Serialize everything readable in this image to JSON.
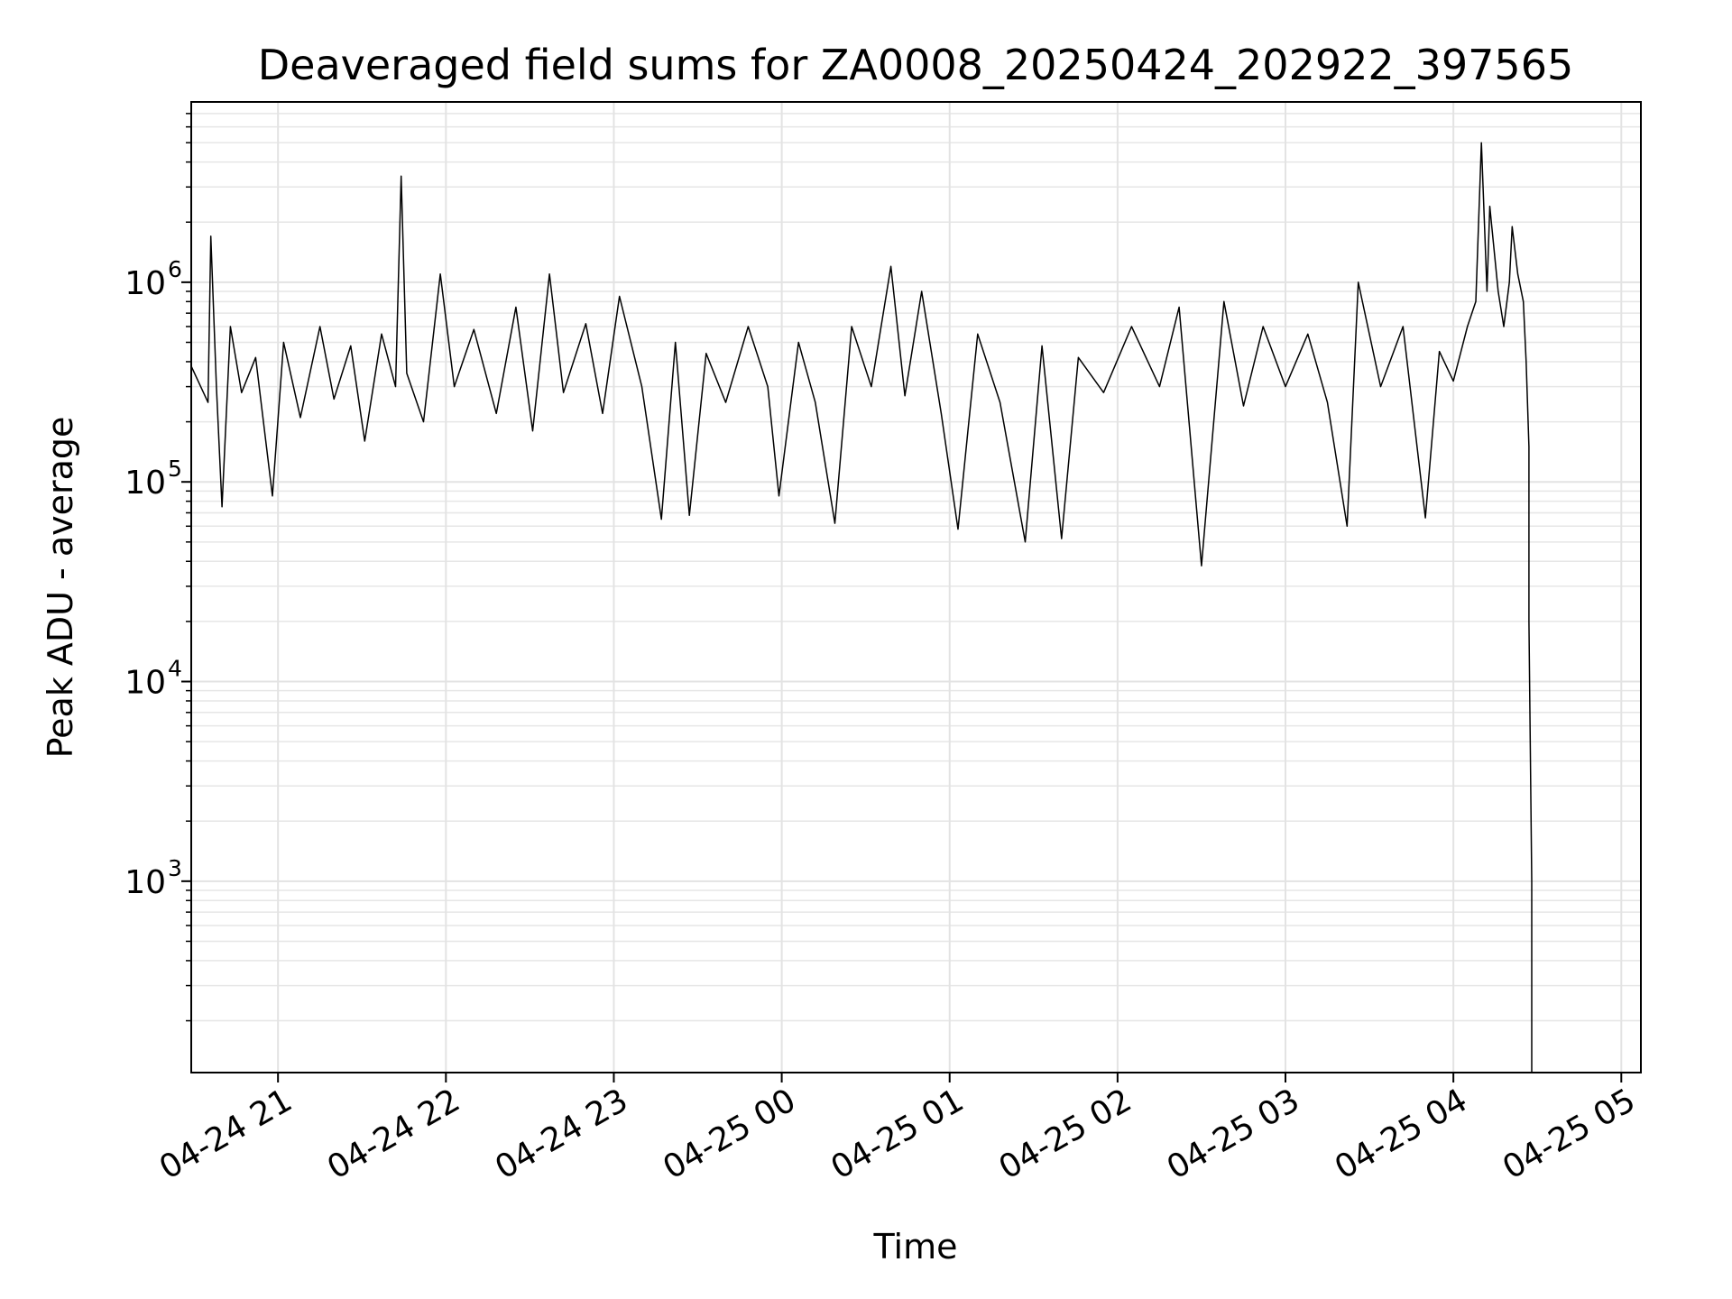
{
  "chart_data": {
    "type": "line",
    "title": "Deaveraged field sums for ZA0008_20250424_202922_397565",
    "xlabel": "Time",
    "ylabel": "Peak ADU - average",
    "yscale": "log",
    "xlim": [
      "2025-04-24 20:29",
      "2025-04-25 05:07"
    ],
    "ylim": [
      110,
      8000000
    ],
    "grid": "on (major and minor)",
    "x_ticks": [
      {
        "value": "2025-04-24 21:00",
        "label": "04-24 21"
      },
      {
        "value": "2025-04-24 22:00",
        "label": "04-24 22"
      },
      {
        "value": "2025-04-24 23:00",
        "label": "04-24 23"
      },
      {
        "value": "2025-04-25 00:00",
        "label": "04-25 00"
      },
      {
        "value": "2025-04-25 01:00",
        "label": "04-25 01"
      },
      {
        "value": "2025-04-25 02:00",
        "label": "04-25 02"
      },
      {
        "value": "2025-04-25 03:00",
        "label": "04-25 03"
      },
      {
        "value": "2025-04-25 04:00",
        "label": "04-25 04"
      },
      {
        "value": "2025-04-25 05:00",
        "label": "04-25 05"
      }
    ],
    "y_ticks": [
      {
        "value": 1000,
        "base": "10",
        "exp": "3"
      },
      {
        "value": 10000,
        "base": "10",
        "exp": "4"
      },
      {
        "value": 100000,
        "base": "10",
        "exp": "5"
      },
      {
        "value": 1000000,
        "base": "10",
        "exp": "6"
      }
    ],
    "series": [
      {
        "color": "#000000",
        "points": [
          [
            "2025-04-24 20:29",
            380000
          ],
          [
            "2025-04-24 20:35",
            250000
          ],
          [
            "2025-04-24 20:36",
            1700000
          ],
          [
            "2025-04-24 20:38",
            300000
          ],
          [
            "2025-04-24 20:40",
            75000
          ],
          [
            "2025-04-24 20:43",
            600000
          ],
          [
            "2025-04-24 20:47",
            280000
          ],
          [
            "2025-04-24 20:52",
            420000
          ],
          [
            "2025-04-24 20:58",
            85000
          ],
          [
            "2025-04-24 21:02",
            500000
          ],
          [
            "2025-04-24 21:08",
            210000
          ],
          [
            "2025-04-24 21:15",
            600000
          ],
          [
            "2025-04-24 21:20",
            260000
          ],
          [
            "2025-04-24 21:26",
            480000
          ],
          [
            "2025-04-24 21:31",
            160000
          ],
          [
            "2025-04-24 21:37",
            550000
          ],
          [
            "2025-04-24 21:42",
            300000
          ],
          [
            "2025-04-24 21:44",
            3400000
          ],
          [
            "2025-04-24 21:46",
            350000
          ],
          [
            "2025-04-24 21:52",
            200000
          ],
          [
            "2025-04-24 21:58",
            1100000
          ],
          [
            "2025-04-24 22:03",
            300000
          ],
          [
            "2025-04-24 22:10",
            580000
          ],
          [
            "2025-04-24 22:18",
            220000
          ],
          [
            "2025-04-24 22:25",
            750000
          ],
          [
            "2025-04-24 22:31",
            180000
          ],
          [
            "2025-04-24 22:37",
            1100000
          ],
          [
            "2025-04-24 22:42",
            280000
          ],
          [
            "2025-04-24 22:50",
            620000
          ],
          [
            "2025-04-24 22:56",
            220000
          ],
          [
            "2025-04-24 23:02",
            850000
          ],
          [
            "2025-04-24 23:10",
            300000
          ],
          [
            "2025-04-24 23:17",
            65000
          ],
          [
            "2025-04-24 23:22",
            500000
          ],
          [
            "2025-04-24 23:27",
            68000
          ],
          [
            "2025-04-24 23:33",
            440000
          ],
          [
            "2025-04-24 23:40",
            250000
          ],
          [
            "2025-04-24 23:48",
            600000
          ],
          [
            "2025-04-24 23:55",
            300000
          ],
          [
            "2025-04-24 23:59",
            85000
          ],
          [
            "2025-04-25 00:06",
            500000
          ],
          [
            "2025-04-25 00:12",
            250000
          ],
          [
            "2025-04-25 00:19",
            62000
          ],
          [
            "2025-04-25 00:25",
            600000
          ],
          [
            "2025-04-25 00:32",
            300000
          ],
          [
            "2025-04-25 00:39",
            1200000
          ],
          [
            "2025-04-25 00:44",
            270000
          ],
          [
            "2025-04-25 00:50",
            900000
          ],
          [
            "2025-04-25 00:57",
            220000
          ],
          [
            "2025-04-25 01:03",
            58000
          ],
          [
            "2025-04-25 01:10",
            550000
          ],
          [
            "2025-04-25 01:18",
            250000
          ],
          [
            "2025-04-25 01:27",
            50000
          ],
          [
            "2025-04-25 01:33",
            480000
          ],
          [
            "2025-04-25 01:40",
            52000
          ],
          [
            "2025-04-25 01:46",
            420000
          ],
          [
            "2025-04-25 01:55",
            280000
          ],
          [
            "2025-04-25 02:05",
            600000
          ],
          [
            "2025-04-25 02:15",
            300000
          ],
          [
            "2025-04-25 02:22",
            750000
          ],
          [
            "2025-04-25 02:30",
            38000
          ],
          [
            "2025-04-25 02:38",
            800000
          ],
          [
            "2025-04-25 02:45",
            240000
          ],
          [
            "2025-04-25 02:52",
            600000
          ],
          [
            "2025-04-25 03:00",
            300000
          ],
          [
            "2025-04-25 03:08",
            550000
          ],
          [
            "2025-04-25 03:15",
            250000
          ],
          [
            "2025-04-25 03:22",
            60000
          ],
          [
            "2025-04-25 03:26",
            1000000
          ],
          [
            "2025-04-25 03:34",
            300000
          ],
          [
            "2025-04-25 03:42",
            600000
          ],
          [
            "2025-04-25 03:50",
            66000
          ],
          [
            "2025-04-25 03:55",
            450000
          ],
          [
            "2025-04-25 04:00",
            320000
          ],
          [
            "2025-04-25 04:05",
            600000
          ],
          [
            "2025-04-25 04:08",
            800000
          ],
          [
            "2025-04-25 04:10",
            5000000
          ],
          [
            "2025-04-25 04:12",
            900000
          ],
          [
            "2025-04-25 04:13",
            2400000
          ],
          [
            "2025-04-25 04:16",
            900000
          ],
          [
            "2025-04-25 04:18",
            600000
          ],
          [
            "2025-04-25 04:20",
            1000000
          ],
          [
            "2025-04-25 04:21",
            1900000
          ],
          [
            "2025-04-25 04:23",
            1100000
          ],
          [
            "2025-04-25 04:25",
            800000
          ],
          [
            "2025-04-25 04:26",
            400000
          ],
          [
            "2025-04-25 04:27",
            150000
          ],
          [
            "2025-04-25 04:27",
            20000
          ],
          [
            "2025-04-25 04:28",
            1000
          ],
          [
            "2025-04-25 04:28",
            110
          ]
        ]
      }
    ]
  }
}
